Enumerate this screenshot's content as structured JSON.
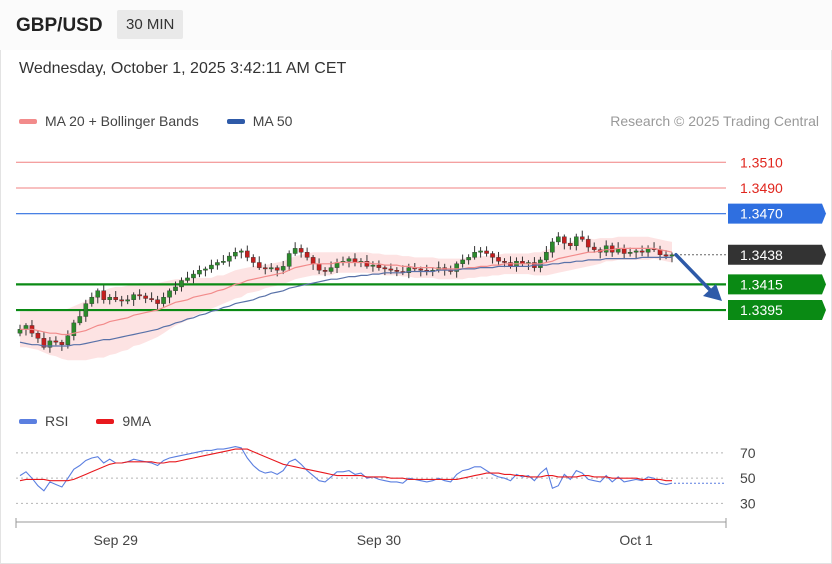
{
  "header": {
    "symbol": "GBP/USD",
    "timeframe": "30 MIN",
    "datetime": "Wednesday, October 1, 2025 3:42:11 AM CET"
  },
  "legend_main": [
    {
      "label": "MA 20 + Bollinger Bands",
      "color": "#f28b8b"
    },
    {
      "label": "MA 50",
      "color": "#2e5aa8"
    }
  ],
  "credit": "Research © 2025 Trading Central",
  "legend_rsi": [
    {
      "label": "RSI",
      "color": "#5b7fe0"
    },
    {
      "label": "9MA",
      "color": "#e8191e"
    }
  ],
  "chart_data": [
    {
      "type": "candlestick",
      "ylim": [
        1.3325,
        1.3532
      ],
      "x_ticks": [
        "Sep 29",
        "Sep 30",
        "Oct 1"
      ],
      "levels": [
        {
          "label": "1.3510",
          "value": 1.351,
          "role": "resistance"
        },
        {
          "label": "1.3490",
          "value": 1.349,
          "role": "resistance"
        },
        {
          "label": "1.3470",
          "value": 1.347,
          "role": "pivot"
        },
        {
          "label": "1.3438",
          "value": 1.3438,
          "role": "last-price"
        },
        {
          "label": "1.3415",
          "value": 1.3415,
          "role": "support"
        },
        {
          "label": "1.3395",
          "value": 1.3395,
          "role": "support"
        }
      ],
      "closes": [
        1.338,
        1.3383,
        1.3377,
        1.3373,
        1.3366,
        1.3371,
        1.337,
        1.3368,
        1.3375,
        1.3385,
        1.339,
        1.34,
        1.3405,
        1.341,
        1.3403,
        1.3405,
        1.3403,
        1.3402,
        1.3403,
        1.3407,
        1.3406,
        1.3404,
        1.3403,
        1.34,
        1.3405,
        1.341,
        1.3413,
        1.3418,
        1.342,
        1.3423,
        1.3426,
        1.3427,
        1.343,
        1.3432,
        1.3433,
        1.3437,
        1.344,
        1.3441,
        1.3436,
        1.3432,
        1.3428,
        1.3427,
        1.3428,
        1.3426,
        1.3429,
        1.3439,
        1.3443,
        1.344,
        1.3436,
        1.3431,
        1.3426,
        1.3425,
        1.3428,
        1.3432,
        1.3433,
        1.3435,
        1.3432,
        1.3433,
        1.3429,
        1.343,
        1.3428,
        1.3427,
        1.3426,
        1.3425,
        1.3424,
        1.3428,
        1.3427,
        1.3426,
        1.3425,
        1.3426,
        1.3428,
        1.3426,
        1.3425,
        1.3431,
        1.3434,
        1.3436,
        1.344,
        1.3441,
        1.3439,
        1.3436,
        1.3433,
        1.3432,
        1.3429,
        1.3433,
        1.3431,
        1.3432,
        1.3428,
        1.3434,
        1.344,
        1.3448,
        1.3452,
        1.3447,
        1.3445,
        1.3452,
        1.345,
        1.3444,
        1.3442,
        1.344,
        1.3445,
        1.344,
        1.3443,
        1.3439,
        1.344,
        1.3441,
        1.344,
        1.3443,
        1.3442,
        1.3438,
        1.3437,
        1.3438
      ],
      "ma20": [
        1.338,
        1.338,
        1.338,
        1.3379,
        1.3378,
        1.3377,
        1.3377,
        1.3376,
        1.3376,
        1.3377,
        1.3378,
        1.3379,
        1.3381,
        1.3383,
        1.3384,
        1.3386,
        1.3387,
        1.3388,
        1.3389,
        1.3391,
        1.3392,
        1.3393,
        1.3394,
        1.3395,
        1.3397,
        1.3399,
        1.3401,
        1.3402,
        1.3403,
        1.3405,
        1.3406,
        1.3407,
        1.3408,
        1.341,
        1.3411,
        1.3413,
        1.3415,
        1.3416,
        1.3418,
        1.3419,
        1.342,
        1.3421,
        1.3422,
        1.3423,
        1.3424,
        1.3426,
        1.3428,
        1.3429,
        1.343,
        1.3431,
        1.3431,
        1.3431,
        1.3431,
        1.3432,
        1.3432,
        1.3432,
        1.3432,
        1.3432,
        1.3432,
        1.3431,
        1.3431,
        1.343,
        1.343,
        1.343,
        1.3429,
        1.3429,
        1.3428,
        1.3428,
        1.3428,
        1.3428,
        1.3427,
        1.3427,
        1.3427,
        1.3427,
        1.3427,
        1.3428,
        1.3428,
        1.3429,
        1.3429,
        1.343,
        1.343,
        1.3431,
        1.3431,
        1.3431,
        1.3431,
        1.3431,
        1.3431,
        1.3431,
        1.3432,
        1.3433,
        1.3435,
        1.3436,
        1.3437,
        1.3438,
        1.3439,
        1.344,
        1.344,
        1.3441,
        1.3442,
        1.3442,
        1.3443,
        1.3443,
        1.3443,
        1.3443,
        1.3443,
        1.3443,
        1.3443,
        1.3442,
        1.3441,
        1.344
      ],
      "ma50": [
        1.337,
        1.3369,
        1.3368,
        1.3368,
        1.3367,
        1.3367,
        1.3367,
        1.3367,
        1.3367,
        1.3368,
        1.3368,
        1.3369,
        1.337,
        1.3371,
        1.3372,
        1.3372,
        1.3373,
        1.3374,
        1.3375,
        1.3376,
        1.3377,
        1.3378,
        1.3379,
        1.338,
        1.3382,
        1.3383,
        1.3385,
        1.3386,
        1.3388,
        1.3389,
        1.3391,
        1.3392,
        1.3394,
        1.3395,
        1.3397,
        1.3398,
        1.34,
        1.3401,
        1.3402,
        1.3403,
        1.3405,
        1.3406,
        1.3408,
        1.3409,
        1.341,
        1.3412,
        1.3413,
        1.3414,
        1.3415,
        1.3416,
        1.3417,
        1.3418,
        1.3419,
        1.3419,
        1.342,
        1.3421,
        1.3421,
        1.3422,
        1.3422,
        1.3423,
        1.3423,
        1.3424,
        1.3424,
        1.3424,
        1.3424,
        1.3425,
        1.3425,
        1.3425,
        1.3425,
        1.3425,
        1.3426,
        1.3426,
        1.3426,
        1.3426,
        1.3427,
        1.3427,
        1.3427,
        1.3428,
        1.3428,
        1.3428,
        1.3429,
        1.3429,
        1.3429,
        1.3429,
        1.3429,
        1.3429,
        1.343,
        1.343,
        1.343,
        1.3431,
        1.3431,
        1.3432,
        1.3432,
        1.3433,
        1.3433,
        1.3434,
        1.3434,
        1.3434,
        1.3435,
        1.3435,
        1.3435,
        1.3435,
        1.3435,
        1.3435,
        1.3436,
        1.3436,
        1.3436,
        1.3436,
        1.3436,
        1.3436
      ],
      "band_width": [
        0.0014,
        0.0014,
        0.0015,
        0.0015,
        0.0016,
        0.0017,
        0.0018,
        0.0019,
        0.002,
        0.0021,
        0.0022,
        0.0023,
        0.0024,
        0.0025,
        0.0026,
        0.0026,
        0.0026,
        0.0025,
        0.0025,
        0.0024,
        0.0024,
        0.0023,
        0.0022,
        0.0021,
        0.002,
        0.0019,
        0.0018,
        0.0017,
        0.0016,
        0.0015,
        0.0014,
        0.0013,
        0.0012,
        0.0012,
        0.0011,
        0.0011,
        0.0011,
        0.0011,
        0.001,
        0.001,
        0.001,
        0.0009,
        0.0009,
        0.0009,
        0.0009,
        0.0009,
        0.0009,
        0.0009,
        0.0009,
        0.0009,
        0.0009,
        0.0009,
        0.0009,
        0.0008,
        0.0008,
        0.0008,
        0.0008,
        0.0008,
        0.0008,
        0.0008,
        0.0008,
        0.0008,
        0.0008,
        0.0008,
        0.0008,
        0.0008,
        0.0008,
        0.0008,
        0.0008,
        0.0008,
        0.0008,
        0.0008,
        0.0008,
        0.0008,
        0.0008,
        0.0008,
        0.0008,
        0.0008,
        0.0008,
        0.0008,
        0.0008,
        0.0008,
        0.0008,
        0.0008,
        0.0008,
        0.0008,
        0.0009,
        0.0009,
        0.001,
        0.001,
        0.0011,
        0.0011,
        0.0011,
        0.0011,
        0.0011,
        0.0011,
        0.001,
        0.001,
        0.0009,
        0.0009,
        0.0009,
        0.0009,
        0.0009,
        0.0009,
        0.0009,
        0.0009,
        0.0008,
        0.0008,
        0.0008,
        0.0008
      ]
    },
    {
      "type": "line",
      "ylim": [
        20,
        85
      ],
      "y_ticks": [
        70,
        50,
        30
      ],
      "series": [
        {
          "name": "RSI",
          "values": [
            52,
            55,
            50,
            44,
            40,
            47,
            45,
            43,
            50,
            57,
            60,
            64,
            66,
            67,
            62,
            65,
            62,
            62,
            63,
            65,
            64,
            63,
            62,
            60,
            64,
            66,
            67,
            68,
            69,
            70,
            71,
            72,
            72,
            73,
            73,
            74,
            75,
            74,
            66,
            60,
            56,
            54,
            55,
            53,
            56,
            63,
            65,
            61,
            56,
            52,
            48,
            47,
            51,
            55,
            55,
            56,
            53,
            54,
            50,
            51,
            49,
            48,
            47,
            47,
            46,
            50,
            49,
            48,
            47,
            48,
            50,
            48,
            47,
            53,
            56,
            57,
            59,
            59,
            56,
            53,
            51,
            50,
            48,
            53,
            51,
            52,
            48,
            54,
            58,
            42,
            44,
            53,
            49,
            56,
            54,
            49,
            48,
            47,
            52,
            47,
            51,
            47,
            48,
            49,
            48,
            51,
            50,
            46,
            45,
            46
          ]
        },
        {
          "name": "9MA",
          "values": [
            48,
            49,
            49,
            49,
            49,
            48,
            48,
            48,
            48,
            49,
            51,
            53,
            55,
            57,
            59,
            61,
            62,
            62,
            63,
            63,
            63,
            63,
            63,
            62,
            62,
            63,
            63,
            64,
            65,
            66,
            67,
            68,
            69,
            70,
            71,
            72,
            73,
            73,
            73,
            71,
            69,
            67,
            65,
            63,
            61,
            60,
            59,
            58,
            57,
            56,
            55,
            54,
            53,
            52,
            52,
            52,
            52,
            52,
            51,
            51,
            51,
            51,
            50,
            50,
            50,
            49,
            49,
            49,
            49,
            49,
            49,
            49,
            49,
            49,
            50,
            51,
            52,
            53,
            54,
            54,
            54,
            53,
            53,
            52,
            52,
            51,
            51,
            51,
            52,
            52,
            51,
            51,
            51,
            51,
            52,
            52,
            51,
            51,
            51,
            50,
            50,
            50,
            50,
            50,
            49,
            49,
            49,
            49,
            48,
            48
          ]
        }
      ]
    }
  ]
}
